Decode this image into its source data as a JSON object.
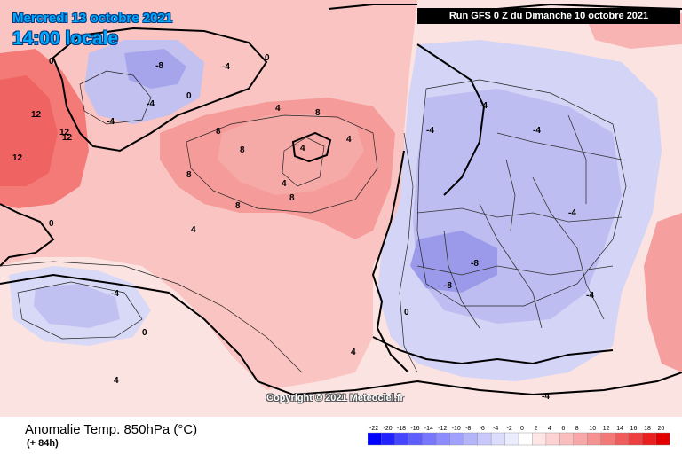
{
  "header": {
    "date": "Mercredi 13 octobre 2021",
    "local_time": "14:00 locale",
    "run_info": "Run GFS 0 Z du Dimanche 10 octobre 2021"
  },
  "map": {
    "copyright": "Copyright © 2021 Meteociel.fr",
    "colors": {
      "warm_strong": "#f46f70",
      "warm_medium": "#f79a98",
      "warm_light": "#fac8c6",
      "cool_light": "#dcdcfa",
      "cool_medium": "#bcbcf3",
      "cool_strong": "#9c9ced",
      "land_outline": "#000000",
      "border_outline": "#333333"
    },
    "contour_labels": [
      "12",
      "12",
      "12",
      "12",
      "0",
      "0",
      "0",
      "0",
      "-8",
      "-4",
      "-4",
      "-4",
      "4",
      "4",
      "4",
      "8",
      "8",
      "8",
      "8",
      "8",
      "8",
      "4",
      "4",
      "-4",
      "-4",
      "-4",
      "-4",
      "-4",
      "-8",
      "-8",
      "-4",
      "-4",
      "4",
      "0",
      "0",
      "4"
    ]
  },
  "footer": {
    "variable_title": "Anomalie Temp. 850hPa (°C)",
    "lead_time": "(+ 84h)"
  },
  "legend": {
    "ticks": [
      "-22",
      "-20",
      "-18",
      "-16",
      "-14",
      "-12",
      "-10",
      "-8",
      "-6",
      "-4",
      "-2",
      "0",
      "2",
      "4",
      "6",
      "8",
      "10",
      "12",
      "14",
      "16",
      "18",
      "20"
    ],
    "colors": [
      "#0000ff",
      "#2222ff",
      "#4646ff",
      "#5e5eff",
      "#7676ff",
      "#8c8cff",
      "#a0a0ff",
      "#b4b4f8",
      "#c8c8fb",
      "#dcdcfd",
      "#ececff",
      "#ffffff",
      "#ffe6e6",
      "#fdd2d2",
      "#fbbebe",
      "#f8a8a8",
      "#f69292",
      "#f47878",
      "#f05c5c",
      "#ec4040",
      "#e82020",
      "#e00000"
    ]
  }
}
